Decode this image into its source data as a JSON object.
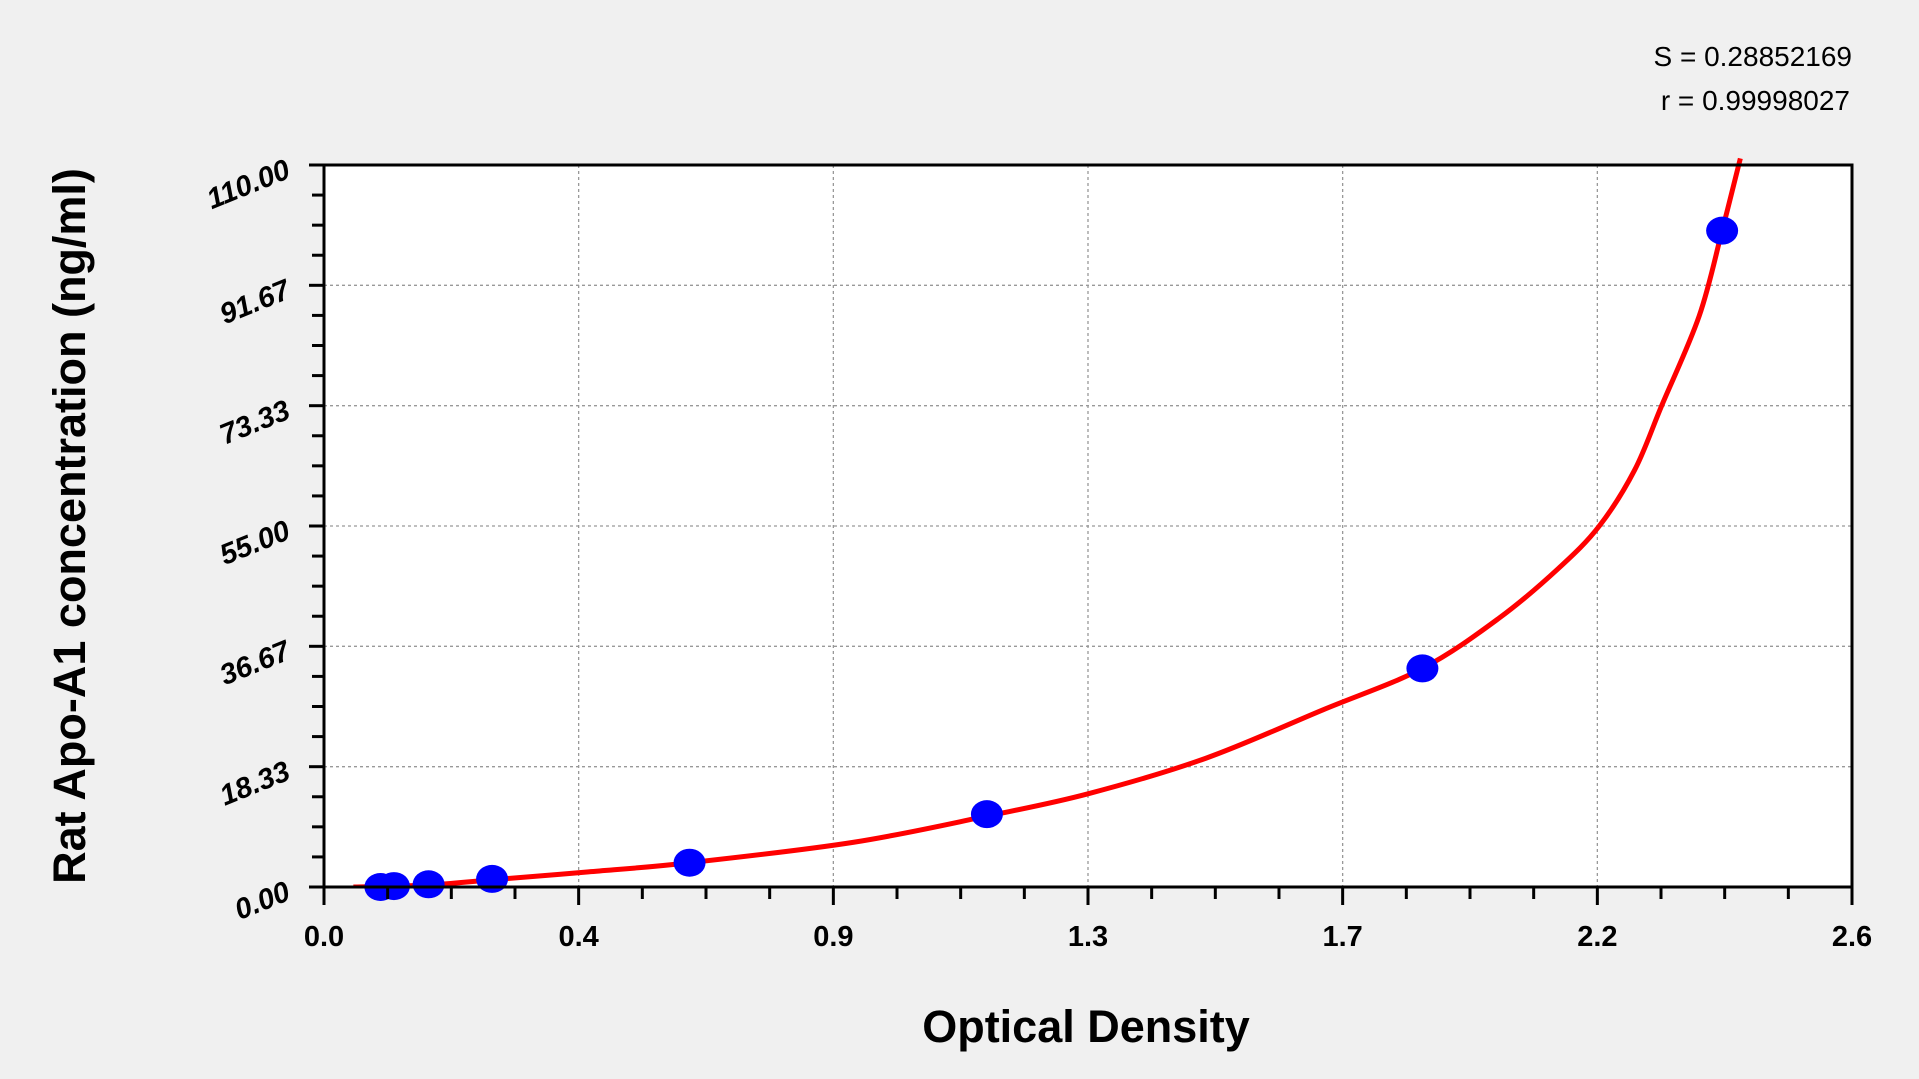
{
  "chart_data": {
    "type": "scatter",
    "title": "",
    "xlabel": "Optical Density",
    "ylabel": "Rat Apo-A1 concentration (ng/ml)",
    "xlim": [
      0,
      2.6
    ],
    "ylim": [
      0,
      110
    ],
    "x_ticks": [
      0,
      0.4333,
      0.8667,
      1.3,
      1.7333,
      2.1667,
      2.6
    ],
    "x_tick_labels": [
      "0.0",
      "0.4",
      "0.9",
      "1.3",
      "1.7",
      "2.2",
      "2.6"
    ],
    "y_ticks": [
      0,
      18.33,
      36.67,
      55,
      73.33,
      91.67,
      110
    ],
    "y_tick_labels": [
      "0.00",
      "18.33",
      "36.67",
      "55.00",
      "73.33",
      "91.67",
      "110.00"
    ],
    "grid": true,
    "annotations": [
      "S = 0.28852169",
      "r = 0.99998027"
    ],
    "series": [
      {
        "kind": "points",
        "color": "#0000ff",
        "x": [
          0.096,
          0.119,
          0.178,
          0.286,
          0.622,
          1.128,
          1.869,
          2.379
        ],
        "y": [
          0,
          0.14,
          0.41,
          1.23,
          3.7,
          11.1,
          33.3,
          100
        ]
      },
      {
        "kind": "fit-curve",
        "color": "#ff0000",
        "x": [
          0.05,
          0.178,
          0.286,
          0.45,
          0.622,
          0.9,
          1.128,
          1.3,
          1.5,
          1.7,
          1.869,
          2.0,
          2.1,
          2.17,
          2.23,
          2.276,
          2.34,
          2.379,
          2.41
        ],
        "y": [
          0,
          0.3,
          1.1,
          2.3,
          3.7,
          6.8,
          10.8,
          14.2,
          19.6,
          27,
          33.3,
          41,
          48.5,
          55,
          63.5,
          73.3,
          87,
          100,
          111
        ]
      }
    ]
  }
}
